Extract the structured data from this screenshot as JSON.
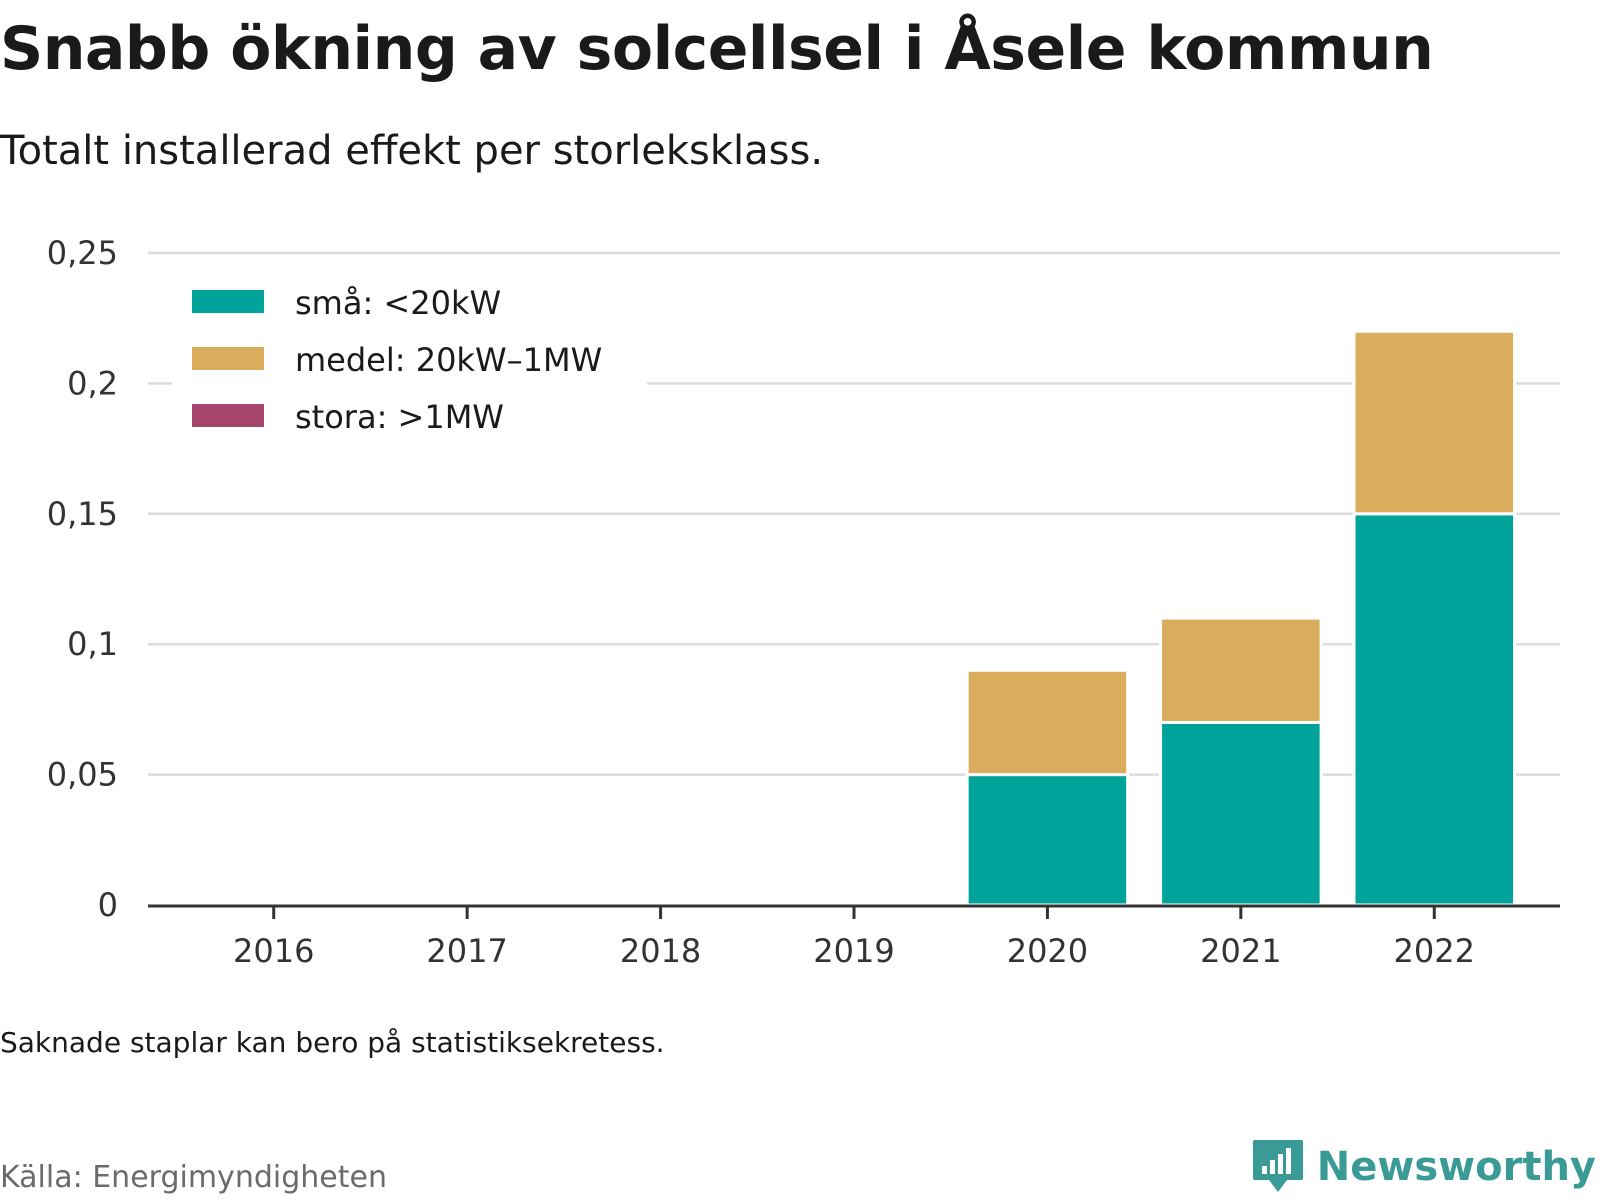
{
  "title": "Snabb ökning av solcellsel i Åsele kommun",
  "subtitle": "Totalt installerad effekt per storleksklass.",
  "footnote": "Saknade staplar kan bero på statistiksekretess.",
  "source": "Källa: Energimyndigheten",
  "brand": {
    "name": "Newsworthy",
    "icon": "newsworthy-logo-icon",
    "color": "#3a9a96"
  },
  "chart_data": {
    "type": "bar",
    "stacked": true,
    "categories": [
      "2016",
      "2017",
      "2018",
      "2019",
      "2020",
      "2021",
      "2022"
    ],
    "series": [
      {
        "name": "små: <20kW",
        "color": "#00a39a",
        "values": [
          0,
          0,
          0,
          0,
          0.05,
          0.07,
          0.15
        ]
      },
      {
        "name": "medel: 20kW–1MW",
        "color": "#d9ad5b",
        "values": [
          0,
          0,
          0,
          0,
          0.04,
          0.04,
          0.07
        ]
      },
      {
        "name": "stora: >1MW",
        "color": "#a6466d",
        "values": [
          0,
          0,
          0,
          0,
          0,
          0,
          0
        ]
      }
    ],
    "ylim": [
      0,
      0.25
    ],
    "yticks": [
      0,
      0.05,
      0.1,
      0.15,
      0.2,
      0.25
    ],
    "ytick_labels": [
      "0",
      "0,05",
      "0,1",
      "0,15",
      "0,2",
      "0,25"
    ],
    "grid": true,
    "legend_position": "top-left"
  }
}
